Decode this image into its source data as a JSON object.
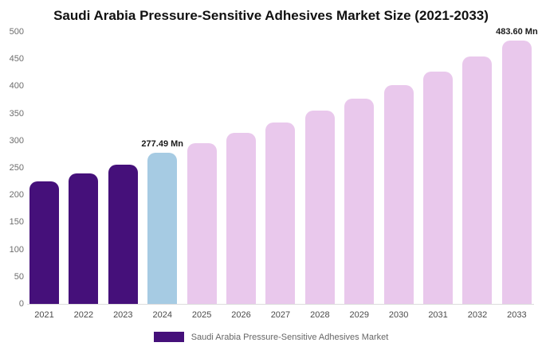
{
  "chart_data": {
    "type": "bar",
    "title": "Saudi Arabia Pressure-Sensitive Adhesives Market Size (2021-2033)",
    "categories": [
      "2021",
      "2022",
      "2023",
      "2024",
      "2025",
      "2026",
      "2027",
      "2028",
      "2029",
      "2030",
      "2031",
      "2032",
      "2033"
    ],
    "values": [
      225.0,
      240.1,
      256.2,
      277.49,
      295.2,
      314.0,
      334.0,
      355.3,
      377.9,
      402.0,
      427.6,
      454.8,
      483.6
    ],
    "unit": "Mn",
    "ylim": [
      0,
      500
    ],
    "yticks": [
      0,
      50,
      100,
      150,
      200,
      250,
      300,
      350,
      400,
      450,
      500
    ],
    "colors": {
      "historical": "#45107a",
      "current": "#a6cbe3",
      "forecast": "#e9c8ec"
    },
    "color_roles": [
      "historical",
      "historical",
      "historical",
      "current",
      "forecast",
      "forecast",
      "forecast",
      "forecast",
      "forecast",
      "forecast",
      "forecast",
      "forecast",
      "forecast"
    ],
    "annotations": [
      {
        "index": 3,
        "text": "277.49 Mn"
      },
      {
        "index": 12,
        "text": "483.60 Mn"
      }
    ],
    "legend": [
      {
        "label": "Saudi Arabia Pressure-Sensitive Adhesives Market",
        "color": "#45107a"
      }
    ],
    "grid": false,
    "legend_position": "bottom"
  }
}
